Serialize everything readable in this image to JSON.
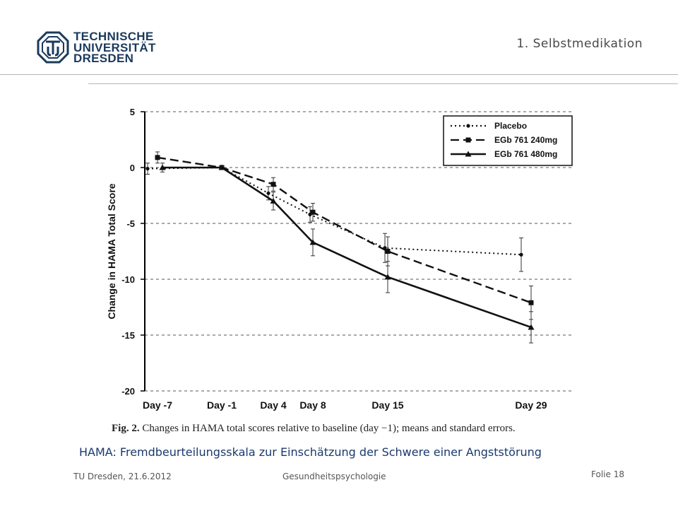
{
  "header": {
    "logo_lines": [
      "TECHNISCHE",
      "UNIVERSITÄT",
      "DRESDEN"
    ],
    "section_title": "1. Selbstmedikation"
  },
  "chart_data": {
    "type": "line",
    "ylabel": "Change in HAMA Total Score",
    "ylim": [
      -20,
      5
    ],
    "yticks": [
      5,
      0,
      -5,
      -10,
      -15,
      -20
    ],
    "categories": [
      "Day -7",
      "Day -1",
      "Day 4",
      "Day 8",
      "Day 15",
      "Day 29"
    ],
    "legend_position": "top-right",
    "grid": "horizontal dashed",
    "series": [
      {
        "name": "Placebo",
        "style": "dotted",
        "marker": "circle",
        "points": [
          {
            "x": "Day -7",
            "y": -0.1,
            "err": 0.5
          },
          {
            "x": "Day -1",
            "y": 0.0,
            "err": 0.1
          },
          {
            "x": "Day 4",
            "y": -2.3,
            "err": 0.6
          },
          {
            "x": "Day 8",
            "y": -4.2,
            "err": 0.7
          },
          {
            "x": "Day 15",
            "y": -7.2,
            "err": 1.3
          },
          {
            "x": "Day 29",
            "y": -7.8,
            "err": 1.5
          }
        ]
      },
      {
        "name": "EGb 761 240mg",
        "style": "dashed",
        "marker": "square",
        "points": [
          {
            "x": "Day -7",
            "y": 0.9,
            "err": 0.5
          },
          {
            "x": "Day -1",
            "y": 0.0,
            "err": 0.1
          },
          {
            "x": "Day 4",
            "y": -1.5,
            "err": 0.6
          },
          {
            "x": "Day 8",
            "y": -4.0,
            "err": 0.8
          },
          {
            "x": "Day 15",
            "y": -7.5,
            "err": 1.3
          },
          {
            "x": "Day 29",
            "y": -12.1,
            "err": 1.5
          }
        ]
      },
      {
        "name": "EGb 761 480mg",
        "style": "solid",
        "marker": "triangle",
        "points": [
          {
            "x": "Day -7",
            "y": 0.0,
            "err": 0.4
          },
          {
            "x": "Day -1",
            "y": 0.0,
            "err": 0.1
          },
          {
            "x": "Day 4",
            "y": -3.0,
            "err": 0.8
          },
          {
            "x": "Day 8",
            "y": -6.7,
            "err": 1.2
          },
          {
            "x": "Day 15",
            "y": -9.8,
            "err": 1.4
          },
          {
            "x": "Day 29",
            "y": -14.3,
            "err": 1.4
          }
        ]
      }
    ]
  },
  "caption": {
    "fig_label": "Fig. 2.",
    "fig_text": "Changes in HAMA total scores relative to baseline (day −1); means and standard errors."
  },
  "subtitle": "HAMA: Fremdbeurteilungsskala zur Einschätzung der Schwere einer Angststörung",
  "footer": {
    "left": "TU Dresden, 21.6.2012",
    "middle": "Gesundheitspsychologie",
    "folie_label": "Folie",
    "folie_number": "18"
  }
}
